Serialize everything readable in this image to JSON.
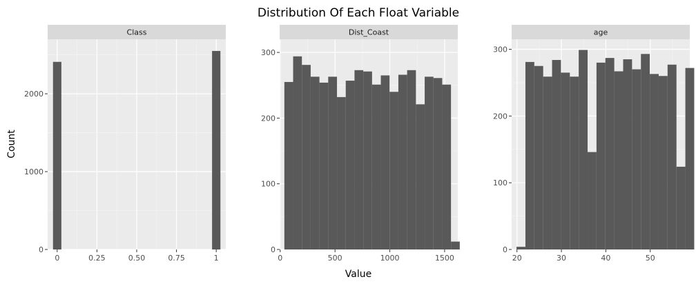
{
  "chart_data": {
    "type": "bar",
    "title": "Distribution Of Each Float Variable",
    "xlabel": "Value",
    "ylabel": "Count",
    "grid": true,
    "facets": [
      {
        "name": "Class",
        "xlim": [
          -0.06,
          1.06
        ],
        "ylim": [
          0,
          2700
        ],
        "x_ticks": [
          0,
          0.25,
          0.5,
          0.75,
          1
        ],
        "x_tick_labels": [
          "0",
          "0.25",
          "0.50",
          "0.75",
          "1"
        ],
        "y_ticks": [
          0,
          1000,
          2000
        ],
        "bins": [
          {
            "x0": -0.0263,
            "x1": 0.0263,
            "count": 2410
          },
          {
            "x0": 0.9737,
            "x1": 1.0263,
            "count": 2550
          }
        ]
      },
      {
        "name": "Dist_Coast",
        "xlim": [
          -5,
          1620
        ],
        "ylim": [
          0,
          320
        ],
        "x_ticks": [
          0,
          500,
          1000,
          1500
        ],
        "x_tick_labels": [
          "0",
          "500",
          "1000",
          "1500"
        ],
        "y_ticks": [
          0,
          100,
          200,
          300
        ],
        "bins": [
          {
            "x0": 38,
            "x1": 118,
            "count": 255
          },
          {
            "x0": 118,
            "x1": 198,
            "count": 294
          },
          {
            "x0": 198,
            "x1": 278,
            "count": 281
          },
          {
            "x0": 278,
            "x1": 358,
            "count": 263
          },
          {
            "x0": 358,
            "x1": 438,
            "count": 254
          },
          {
            "x0": 438,
            "x1": 518,
            "count": 263
          },
          {
            "x0": 518,
            "x1": 598,
            "count": 232
          },
          {
            "x0": 598,
            "x1": 678,
            "count": 257
          },
          {
            "x0": 678,
            "x1": 758,
            "count": 273
          },
          {
            "x0": 758,
            "x1": 838,
            "count": 271
          },
          {
            "x0": 838,
            "x1": 918,
            "count": 251
          },
          {
            "x0": 918,
            "x1": 998,
            "count": 265
          },
          {
            "x0": 998,
            "x1": 1078,
            "count": 240
          },
          {
            "x0": 1078,
            "x1": 1158,
            "count": 266
          },
          {
            "x0": 1158,
            "x1": 1238,
            "count": 273
          },
          {
            "x0": 1238,
            "x1": 1318,
            "count": 221
          },
          {
            "x0": 1318,
            "x1": 1398,
            "count": 263
          },
          {
            "x0": 1398,
            "x1": 1478,
            "count": 261
          },
          {
            "x0": 1478,
            "x1": 1558,
            "count": 251
          },
          {
            "x0": 1558,
            "x1": 1638,
            "count": 12
          }
        ]
      },
      {
        "name": "age",
        "xlim": [
          18.8,
          58.9
        ],
        "ylim": [
          0,
          315
        ],
        "x_ticks": [
          20,
          30,
          40,
          50
        ],
        "x_tick_labels": [
          "20",
          "30",
          "40",
          "50"
        ],
        "y_ticks": [
          0,
          100,
          200,
          300
        ],
        "bins": [
          {
            "x0": 19.9,
            "x1": 21.9,
            "count": 4
          },
          {
            "x0": 21.9,
            "x1": 23.9,
            "count": 281
          },
          {
            "x0": 23.9,
            "x1": 25.9,
            "count": 275
          },
          {
            "x0": 25.9,
            "x1": 27.9,
            "count": 259
          },
          {
            "x0": 27.9,
            "x1": 29.9,
            "count": 284
          },
          {
            "x0": 29.9,
            "x1": 31.9,
            "count": 265
          },
          {
            "x0": 31.9,
            "x1": 33.9,
            "count": 259
          },
          {
            "x0": 33.9,
            "x1": 35.9,
            "count": 299
          },
          {
            "x0": 35.9,
            "x1": 37.9,
            "count": 146
          },
          {
            "x0": 37.9,
            "x1": 39.9,
            "count": 280
          },
          {
            "x0": 39.9,
            "x1": 41.9,
            "count": 287
          },
          {
            "x0": 41.9,
            "x1": 43.9,
            "count": 267
          },
          {
            "x0": 43.9,
            "x1": 45.9,
            "count": 285
          },
          {
            "x0": 45.9,
            "x1": 47.9,
            "count": 270
          },
          {
            "x0": 47.9,
            "x1": 49.9,
            "count": 293
          },
          {
            "x0": 49.9,
            "x1": 51.9,
            "count": 263
          },
          {
            "x0": 51.9,
            "x1": 53.9,
            "count": 260
          },
          {
            "x0": 53.9,
            "x1": 55.9,
            "count": 277
          },
          {
            "x0": 55.9,
            "x1": 57.9,
            "count": 124
          },
          {
            "x0": 57.9,
            "x1": 59.9,
            "count": 272
          }
        ]
      }
    ],
    "colors": {
      "bar": "#595959",
      "panel_background": "#ebebeb",
      "strip_background": "#d9d9d9",
      "grid_major": "#ffffff",
      "grid_minor": "#f5f5f5"
    }
  }
}
